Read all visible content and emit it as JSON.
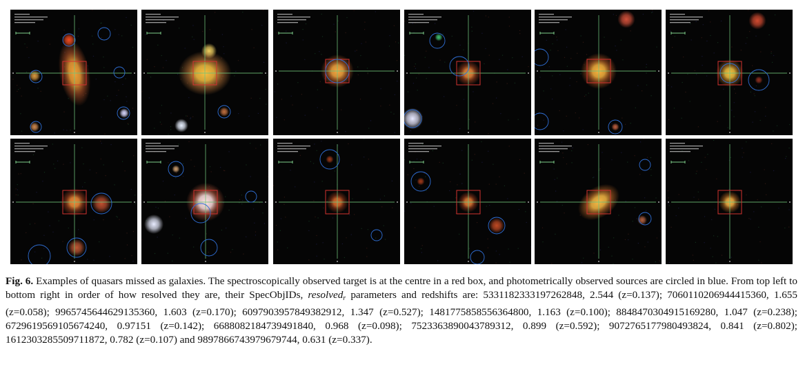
{
  "figure": {
    "panels": [
      {
        "row": 1,
        "col": 1,
        "spec_obj_id": "5331182333197262848",
        "resolved": "2.544",
        "z": "0.137"
      },
      {
        "row": 1,
        "col": 2,
        "spec_obj_id": "7060110206944415360",
        "resolved": "1.655",
        "z": "0.058"
      },
      {
        "row": 1,
        "col": 3,
        "spec_obj_id": "9965745644629135360",
        "resolved": "1.603",
        "z": "0.170"
      },
      {
        "row": 1,
        "col": 4,
        "spec_obj_id": "6097903957849382912",
        "resolved": "1.347",
        "z": "0.527"
      },
      {
        "row": 1,
        "col": 5,
        "spec_obj_id": "1481775858556364800",
        "resolved": "1.163",
        "z": "0.100"
      },
      {
        "row": 1,
        "col": 6,
        "spec_obj_id": "8848470304915169280",
        "resolved": "1.047",
        "z": "0.238"
      },
      {
        "row": 2,
        "col": 1,
        "spec_obj_id": "6729619569105674240",
        "resolved": "0.97151",
        "z": "0.142"
      },
      {
        "row": 2,
        "col": 2,
        "spec_obj_id": "6688082184739491840",
        "resolved": "0.968",
        "z": "0.098"
      },
      {
        "row": 2,
        "col": 3,
        "spec_obj_id": "7523363890043789312",
        "resolved": "0.899",
        "z": "0.592"
      },
      {
        "row": 2,
        "col": 4,
        "spec_obj_id": "9072765177980493824",
        "resolved": "0.841",
        "z": "0.802"
      },
      {
        "row": 2,
        "col": 5,
        "spec_obj_id": "1612303285509711872",
        "resolved": "0.782",
        "z": "0.107"
      },
      {
        "row": 2,
        "col": 6,
        "spec_obj_id": "9897866743979679744",
        "resolved": "0.631",
        "z": "0.337"
      }
    ],
    "colors": {
      "background": "#050505",
      "crosshair": "#6fc27a",
      "target_box": "#d4322f",
      "photometric_circle": "#2f6fd6"
    }
  },
  "caption": {
    "label": "Fig. 6.",
    "text_a": " Examples of quasars missed as galaxies. The spectroscopically observed target is at the centre in a red box, and photometrically observed sources are circled in blue. From top left to bottom right in order of how resolved they are, their SpecObjIDs, ",
    "italic": "resolved",
    "sub": "r",
    "text_b": " parameters and redshifts are: 5331182333197262848, 2.544 (z=0.137); 7060110206944415360, 1.655 (z=0.058); 9965745644629135360, 1.603 (z=0.170); 6097903957849382912, 1.347 (z=0.527); 1481775858556364800, 1.163 (z=0.100); 8848470304915169280, 1.047 (z=0.238); 6729619569105674240, 0.97151 (z=0.142); 6688082184739491840, 0.968 (z=0.098); 7523363890043789312, 0.899 (z=0.592); 9072765177980493824, 0.841 (z=0.802); 1612303285509711872, 0.782 (z=0.107) and 9897866743979679744, 0.631 (z=0.337)."
  }
}
